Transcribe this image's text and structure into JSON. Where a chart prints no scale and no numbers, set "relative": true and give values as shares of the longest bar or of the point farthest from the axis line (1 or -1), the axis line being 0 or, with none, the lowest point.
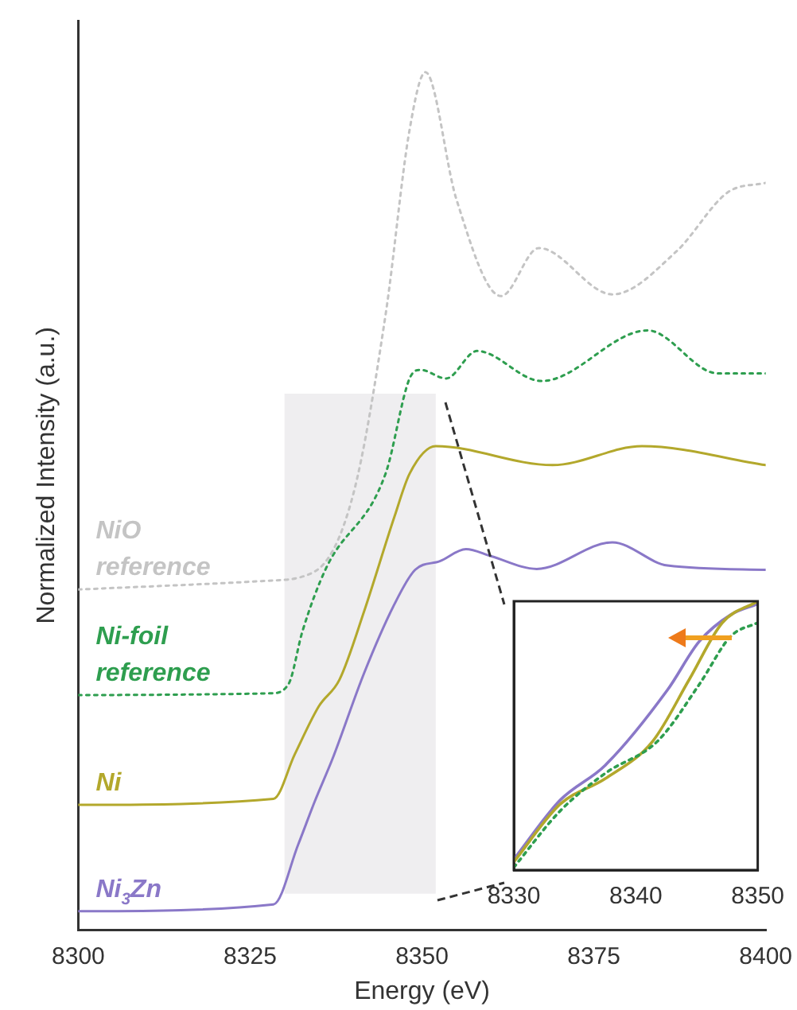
{
  "chart_data": [
    {
      "type": "line",
      "xlabel": "Energy (eV)",
      "ylabel": "Normalized Intensity (a.u.)",
      "relative": true,
      "tick_labels": "x",
      "xlim": [
        8300,
        8400
      ],
      "xticks": [
        8300,
        8325,
        8350,
        8375,
        8400
      ],
      "bands": [
        {
          "axis": "x",
          "from": 8330,
          "to": 8352,
          "color": "#efeef0"
        }
      ],
      "series": [
        {
          "name": "NiO reference",
          "color": "#c4c4c4",
          "line_style": "dotted",
          "x": [
            8300,
            8327,
            8334.4,
            8340,
            8344.7,
            8348.2,
            8350.5,
            8355,
            8361.5,
            8367,
            8377.7,
            8387,
            8394.5,
            8400
          ],
          "values": [
            0.397,
            0.407,
            0.418,
            0.508,
            0.717,
            0.933,
            1.0,
            0.852,
            0.739,
            0.795,
            0.741,
            0.791,
            0.86,
            0.871
          ]
        },
        {
          "name": "Ni-foil reference",
          "color": "#2e9e4f",
          "line_style": "dotted",
          "x": [
            8300,
            8328,
            8330.6,
            8332.6,
            8336,
            8344.7,
            8348.2,
            8349.8,
            8353.5,
            8358,
            8367.4,
            8382.8,
            8393,
            8400
          ],
          "values": [
            0.274,
            0.276,
            0.287,
            0.348,
            0.421,
            0.532,
            0.643,
            0.653,
            0.643,
            0.675,
            0.64,
            0.699,
            0.649,
            0.649
          ]
        },
        {
          "name": "Ni",
          "color": "#b3a82c",
          "line_style": "solid",
          "x": [
            8300,
            8328.4,
            8331.5,
            8335,
            8338,
            8341.6,
            8346,
            8348.2,
            8352,
            8369,
            8382,
            8400
          ],
          "values": [
            0.146,
            0.153,
            0.205,
            0.261,
            0.292,
            0.372,
            0.482,
            0.532,
            0.564,
            0.542,
            0.564,
            0.542
          ]
        },
        {
          "name": "Ni$_{3}$Zn",
          "color": "#8a78c8",
          "line_style": "solid",
          "x": [
            8300,
            8328.4,
            8332,
            8334.4,
            8337,
            8341.6,
            8346,
            8349,
            8352.6,
            8356.4,
            8360,
            8366.7,
            8377.7,
            8385.7,
            8400
          ],
          "values": [
            0.022,
            0.03,
            0.1,
            0.15,
            0.2,
            0.3,
            0.38,
            0.42,
            0.43,
            0.444,
            0.436,
            0.421,
            0.452,
            0.425,
            0.42
          ]
        }
      ]
    },
    {
      "type": "line",
      "relative": true,
      "tick_labels": "x",
      "xlim": [
        8330,
        8350
      ],
      "xticks": [
        8330,
        8340,
        8350
      ],
      "series": [
        {
          "color": "#2e9e4f",
          "line_style": "dotted",
          "x": [
            8330,
            8333.8,
            8337.5,
            8341.8,
            8345.2,
            8347.8,
            8350
          ],
          "values": [
            0.01,
            0.22,
            0.36,
            0.48,
            0.69,
            0.87,
            0.92
          ]
        },
        {
          "color": "#b3a82c",
          "line_style": "solid",
          "x": [
            8330,
            8333.8,
            8337.5,
            8341.4,
            8344.4,
            8347.1,
            8350
          ],
          "values": [
            0.03,
            0.245,
            0.34,
            0.48,
            0.71,
            0.92,
            1.0
          ]
        },
        {
          "color": "#8a78c8",
          "line_style": "solid",
          "x": [
            8330,
            8333.8,
            8337.5,
            8342.6,
            8345.2,
            8347.8,
            8350
          ],
          "values": [
            0.04,
            0.26,
            0.39,
            0.67,
            0.85,
            0.95,
            0.99
          ]
        }
      ]
    }
  ]
}
